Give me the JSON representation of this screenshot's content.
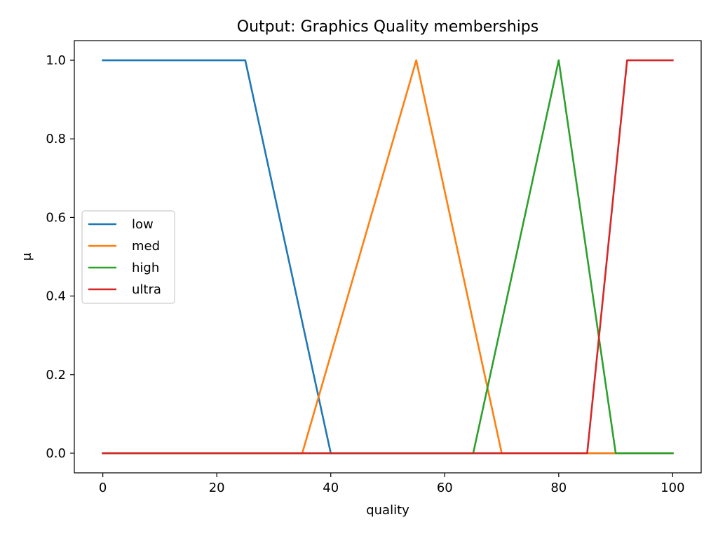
{
  "chart_data": {
    "type": "line",
    "title": "Output: Graphics Quality memberships",
    "xlabel": "quality",
    "ylabel": "μ",
    "xlim": [
      -5,
      105
    ],
    "ylim": [
      -0.05,
      1.05
    ],
    "xticks": [
      0,
      20,
      40,
      60,
      80,
      100
    ],
    "yticks": [
      0.0,
      0.2,
      0.4,
      0.6,
      0.8,
      1.0
    ],
    "xtick_labels": [
      "0",
      "20",
      "40",
      "60",
      "80",
      "100"
    ],
    "ytick_labels": [
      "0.0",
      "0.2",
      "0.4",
      "0.6",
      "0.8",
      "1.0"
    ],
    "grid": false,
    "legend_position": "center-left",
    "series": [
      {
        "name": "low",
        "color": "#1f77b4",
        "x": [
          0,
          25,
          40,
          100
        ],
        "y": [
          1,
          1,
          0,
          0
        ]
      },
      {
        "name": "med",
        "color": "#ff7f0e",
        "x": [
          0,
          35,
          55,
          70,
          100
        ],
        "y": [
          0,
          0,
          1,
          0,
          0
        ]
      },
      {
        "name": "high",
        "color": "#2ca02c",
        "x": [
          0,
          65,
          80,
          90,
          100
        ],
        "y": [
          0,
          0,
          1,
          0,
          0
        ]
      },
      {
        "name": "ultra",
        "color": "#d62728",
        "x": [
          0,
          85,
          92,
          100
        ],
        "y": [
          0,
          0,
          1,
          1
        ]
      }
    ]
  }
}
